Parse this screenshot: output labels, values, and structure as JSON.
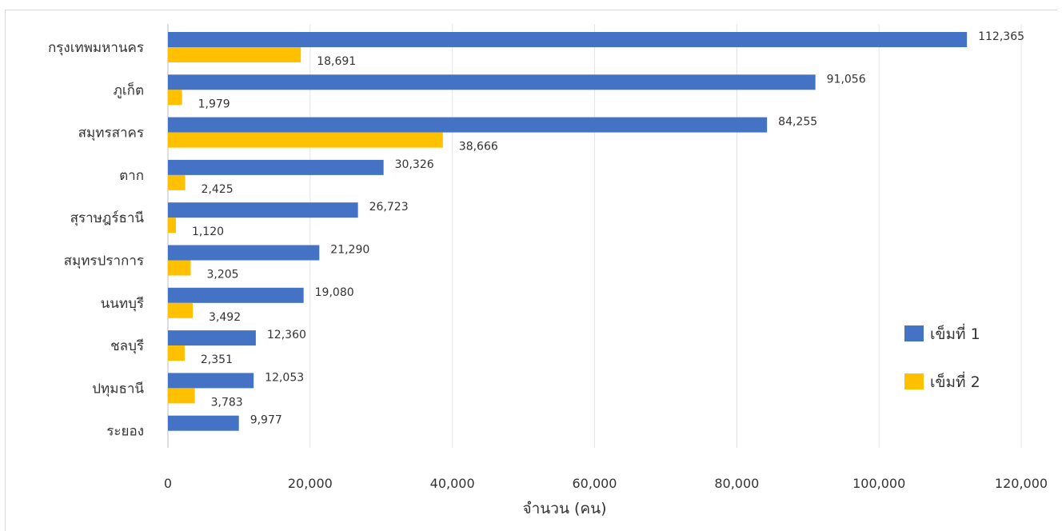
{
  "chart_data": {
    "type": "bar",
    "orientation": "horizontal",
    "title": "",
    "xlabel": "จำนวน (คน)",
    "ylabel": "",
    "xlim": [
      0,
      120000
    ],
    "x_ticks": [
      "0",
      "20,000",
      "40,000",
      "60,000",
      "80,000",
      "100,000",
      "120,000"
    ],
    "grid": true,
    "legend_position": "right",
    "categories": [
      "กรุงเทพมหานคร",
      "ภูเก็ต",
      "สมุทรสาคร",
      "ตาก",
      "สุราษฎร์ธานี",
      "สมุทรปราการ",
      "นนทบุรี",
      "ชลบุรี",
      "ปทุมธานี",
      "ระยอง"
    ],
    "series": [
      {
        "name": "เข็มที่ 1",
        "color": "#4472C4",
        "values": [
          112365,
          91056,
          84255,
          30326,
          26723,
          21290,
          19080,
          12360,
          12053,
          9977
        ],
        "labels": [
          "112,365",
          "91,056",
          "84,255",
          "30,326",
          "26,723",
          "21,290",
          "19,080",
          "12,360",
          "12,053",
          "9,977"
        ]
      },
      {
        "name": "เข็มที่ 2",
        "color": "#FFC000",
        "values": [
          18691,
          1979,
          38666,
          2425,
          1120,
          3205,
          3492,
          2351,
          3783,
          null
        ],
        "labels": [
          "18,691",
          "1,979",
          "38,666",
          "2,425",
          "1,120",
          "3,205",
          "3,492",
          "2,351",
          "3,783",
          ""
        ]
      }
    ]
  }
}
